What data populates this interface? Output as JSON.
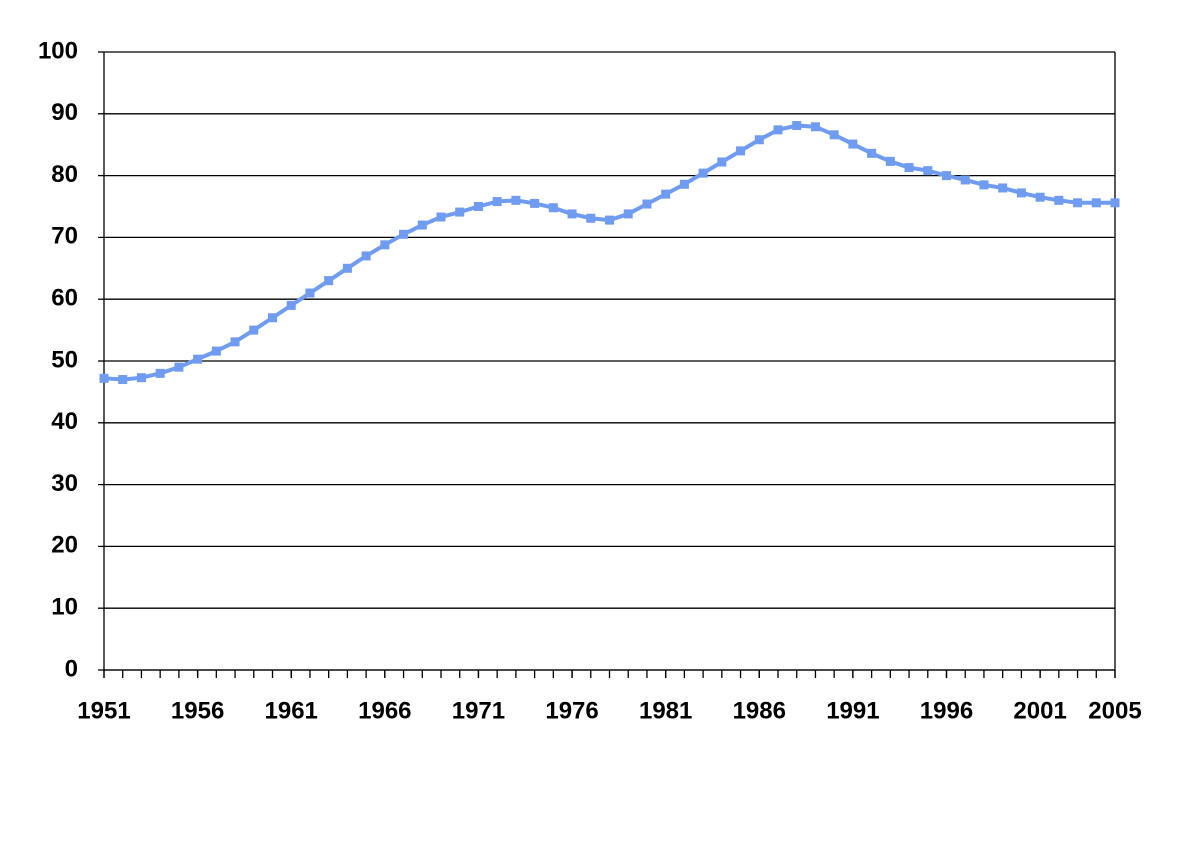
{
  "chart_data": {
    "type": "line",
    "x": [
      1951,
      1952,
      1953,
      1954,
      1955,
      1956,
      1957,
      1958,
      1959,
      1960,
      1961,
      1962,
      1963,
      1964,
      1965,
      1966,
      1967,
      1968,
      1969,
      1970,
      1971,
      1972,
      1973,
      1974,
      1975,
      1976,
      1977,
      1978,
      1979,
      1980,
      1981,
      1982,
      1983,
      1984,
      1985,
      1986,
      1987,
      1988,
      1989,
      1990,
      1991,
      1992,
      1993,
      1994,
      1995,
      1996,
      1997,
      1998,
      1999,
      2000,
      2001,
      2002,
      2003,
      2004,
      2005
    ],
    "values": [
      47.2,
      47.0,
      47.3,
      48.0,
      49.0,
      50.3,
      51.6,
      53.1,
      55.0,
      57.0,
      59.0,
      61.0,
      63.0,
      65.0,
      67.0,
      68.8,
      70.5,
      72.0,
      73.3,
      74.1,
      75.0,
      75.8,
      76.0,
      75.5,
      74.8,
      73.8,
      73.1,
      72.8,
      73.8,
      75.4,
      77.0,
      78.6,
      80.4,
      82.2,
      84.0,
      85.8,
      87.4,
      88.1,
      87.9,
      86.6,
      85.1,
      83.6,
      82.3,
      81.3,
      80.8,
      80.0,
      79.3,
      78.5,
      78.0,
      77.2,
      76.5,
      76.0,
      75.6,
      75.6,
      75.6
    ],
    "color": "#6f9bf0",
    "xlim": [
      1951,
      2005
    ],
    "xticks": [
      1951,
      1956,
      1961,
      1966,
      1971,
      1976,
      1981,
      1986,
      1991,
      1996,
      2001,
      2005
    ],
    "ylim": [
      0,
      100
    ],
    "yticks": [
      0,
      10,
      20,
      30,
      40,
      50,
      60,
      70,
      80,
      90,
      100
    ],
    "grid": true
  }
}
